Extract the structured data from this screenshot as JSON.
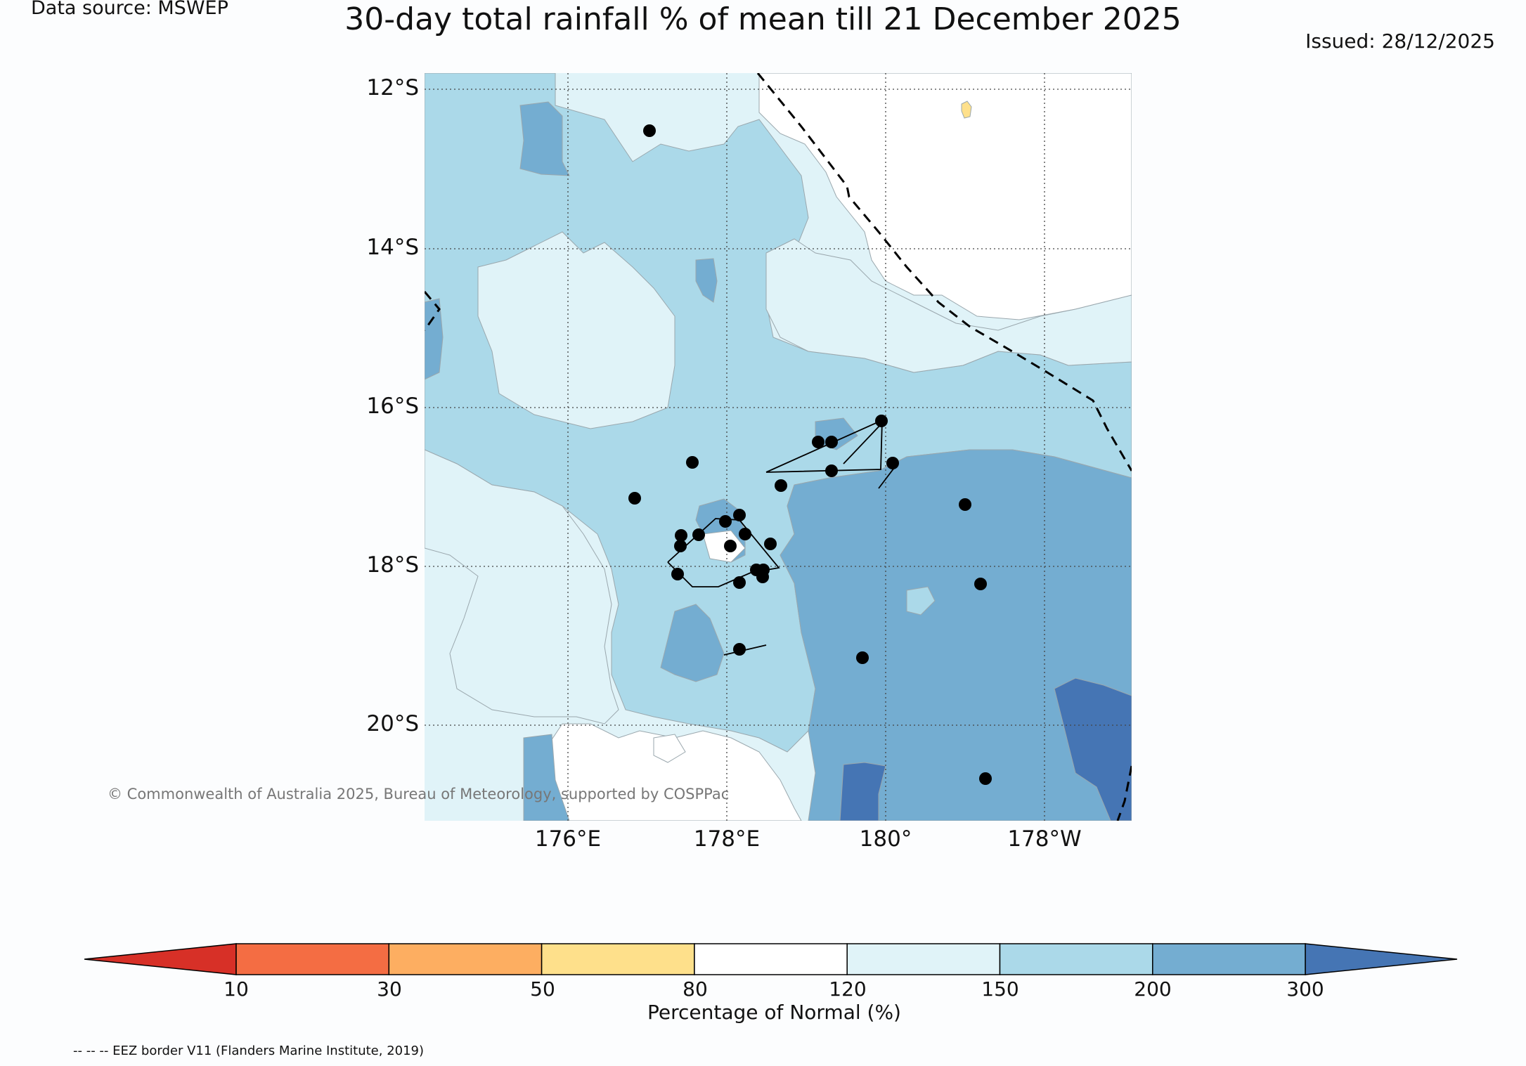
{
  "header": {
    "source": "Data source: MSWEP",
    "title": "30-day total rainfall % of mean till 21 December 2025",
    "issued": "Issued: 28/12/2025"
  },
  "axes": {
    "lat_labels": [
      "12°S",
      "14°S",
      "16°S",
      "18°S",
      "20°S"
    ],
    "lon_labels": [
      "176°E",
      "178°E",
      "180°",
      "178°W"
    ]
  },
  "copyright": "© Commonwealth of Australia 2025, Bureau of Meteorology, supported by COSPPac",
  "colorbar": {
    "title": "Percentage of Normal (%)",
    "ticks": [
      "10",
      "30",
      "50",
      "80",
      "120",
      "150",
      "200",
      "300"
    ],
    "colors": [
      "#d73027",
      "#f46d43",
      "#fdae61",
      "#fee08b",
      "#ffffff",
      "#e0f3f8",
      "#abd9e9",
      "#74add1",
      "#4575b4"
    ]
  },
  "footnote": "-- -- -- EEZ border V11 (Flanders Marine Institute, 2019)",
  "palette": {
    "white": "#ffffff",
    "light": "#e0f3f8",
    "mid": "#abd9e9",
    "dark": "#74add1",
    "darkest": "#4575b4",
    "yellow": "#fee08b"
  }
}
